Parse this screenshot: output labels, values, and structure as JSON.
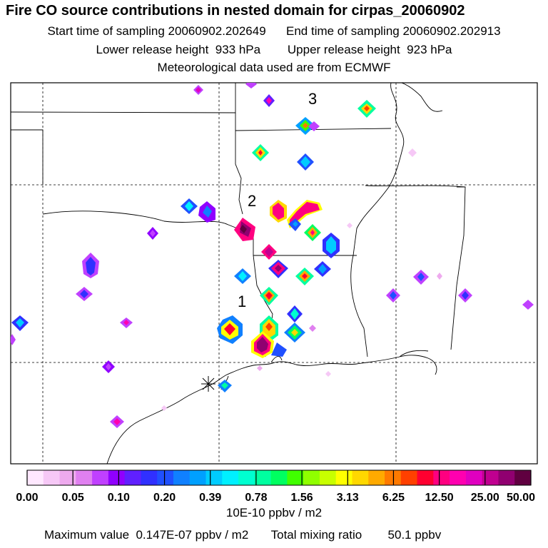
{
  "header": {
    "title": "Fire CO source contributions in nested domain for cirpas_20060902",
    "start_label": "Start time of sampling 20060902.202649",
    "end_label": "End time of sampling 20060902.202913",
    "lower_label": "Lower release height  933 hPa",
    "upper_label": "Upper release height  923 hPa",
    "met_label": "Meteorological data used are from ECMWF"
  },
  "map": {
    "annotations": [
      "1",
      "2",
      "3"
    ],
    "marker": "release-site-marker"
  },
  "colorbar": {
    "tick_labels": [
      "0.00",
      "0.05",
      "0.10",
      "0.20",
      "0.39",
      "0.78",
      "1.56",
      "3.13",
      "6.25",
      "12.50",
      "25.00",
      "50.00"
    ],
    "units": "10E-10 ppbv / m2",
    "colors": [
      "#ffe8ff",
      "#f6c8f6",
      "#eeaaee",
      "#e080f0",
      "#c040ff",
      "#9000ff",
      "#6020ff",
      "#3030ff",
      "#2050ff",
      "#1080ff",
      "#00a0ff",
      "#00ccff",
      "#00f0ff",
      "#00ffd0",
      "#00ffa0",
      "#00ff60",
      "#40ff00",
      "#90ff00",
      "#c8ff00",
      "#ffff00",
      "#ffd800",
      "#ffaa00",
      "#ff7a00",
      "#ff4000",
      "#ff0030",
      "#ff0080",
      "#ff00b0",
      "#e000c0",
      "#c00090",
      "#900070",
      "#600040"
    ]
  },
  "footer": {
    "max_label": "Maximum value  0.147E-07 ppbv / m2",
    "total_label": "Total mixing ratio",
    "total_value": "50.1 ppbv"
  },
  "colors": {
    "background": "#ffffff",
    "lines": "#000000"
  }
}
